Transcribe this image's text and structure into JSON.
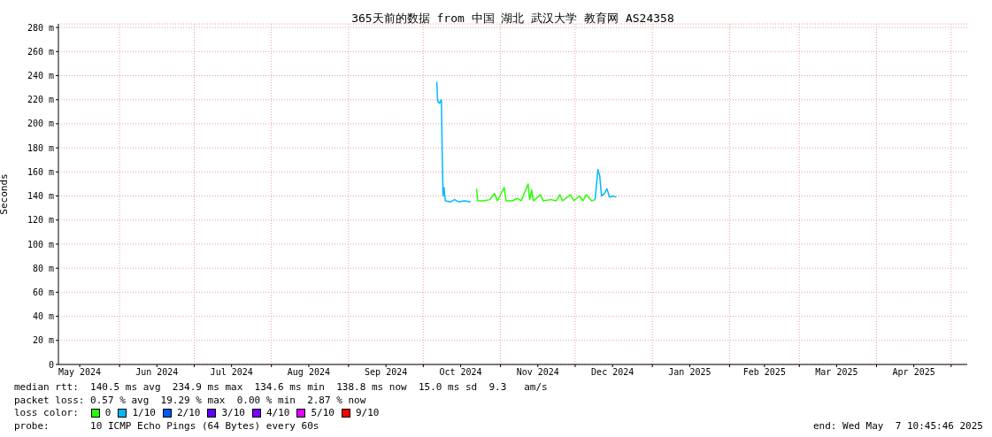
{
  "chart_data": {
    "type": "line",
    "title": "365天前的数据 from 中国 湖北 武汉大学 教育网 AS24358",
    "ylabel": "Seconds",
    "legend_title": "loss color:",
    "legend": "bottom",
    "grid": true,
    "xlim": [
      "2024-05-07T10:45",
      "2025-05-07T10:45"
    ],
    "xticks": [
      {
        "value": "2024-05-16",
        "label": "May 2024"
      },
      {
        "value": "2024-06-01",
        "label": null
      },
      {
        "value": "2024-06-16",
        "label": "Jun 2024"
      },
      {
        "value": "2024-07-01",
        "label": null
      },
      {
        "value": "2024-07-16",
        "label": "Jul 2024"
      },
      {
        "value": "2024-08-01",
        "label": null
      },
      {
        "value": "2024-08-16",
        "label": "Aug 2024"
      },
      {
        "value": "2024-09-01",
        "label": null
      },
      {
        "value": "2024-09-16",
        "label": "Sep 2024"
      },
      {
        "value": "2024-10-01",
        "label": null
      },
      {
        "value": "2024-10-16",
        "label": "Oct 2024"
      },
      {
        "value": "2024-11-01",
        "label": null
      },
      {
        "value": "2024-11-16",
        "label": "Nov 2024"
      },
      {
        "value": "2024-12-01",
        "label": null
      },
      {
        "value": "2024-12-16",
        "label": "Dec 2024"
      },
      {
        "value": "2025-01-01",
        "label": null
      },
      {
        "value": "2025-01-16",
        "label": "Jan 2025"
      },
      {
        "value": "2025-02-01",
        "label": null
      },
      {
        "value": "2025-02-15",
        "label": "Feb 2025"
      },
      {
        "value": "2025-03-01",
        "label": null
      },
      {
        "value": "2025-03-16",
        "label": "Mar 2025"
      },
      {
        "value": "2025-04-01",
        "label": null
      },
      {
        "value": "2025-04-16",
        "label": "Apr 2025"
      },
      {
        "value": "2025-05-01",
        "label": null
      }
    ],
    "ylim": [
      0,
      283
    ],
    "yticks": [
      0,
      {
        "value": 20,
        "label": "20 m"
      },
      {
        "value": 40,
        "label": "40 m"
      },
      {
        "value": 60,
        "label": "60 m"
      },
      {
        "value": 80,
        "label": "80 m"
      },
      {
        "value": 100,
        "label": "100 m"
      },
      {
        "value": 120,
        "label": "120 m"
      },
      {
        "value": 140,
        "label": "140 m"
      },
      {
        "value": 160,
        "label": "160 m"
      },
      {
        "value": 180,
        "label": "180 m"
      },
      {
        "value": 200,
        "label": "200 m"
      },
      {
        "value": 220,
        "label": "220 m"
      },
      {
        "value": 240,
        "label": "240 m"
      },
      {
        "value": 260,
        "label": "260 m"
      },
      {
        "value": 280,
        "label": "280 m"
      }
    ],
    "x": [
      "2024-10-06T10:00",
      "2024-10-06T18:00",
      "2024-10-07T12:00",
      "2024-10-08T06:00",
      "2024-10-08T14:00",
      "2024-10-08T22:00",
      "2024-10-09T08:00",
      "2024-10-09T20:00",
      "2024-10-11T19:00",
      "2024-10-13T14:00",
      "2024-10-15T07:00",
      "2024-10-17T12:00",
      "2024-10-20T00:00",
      "2024-10-21T12:00",
      "2024-10-22T10:00",
      "2024-10-22T20:00",
      "2024-10-25T07:00",
      "2024-10-27T19:00",
      "2024-10-29T14:00",
      "2024-10-30T18:00",
      "2024-11-02T12:00",
      "2024-11-03T06:00",
      "2024-11-05T17:00",
      "2024-11-07T19:00",
      "2024-11-09T07:00",
      "2024-11-12T02:00",
      "2024-11-12T17:00",
      "2024-11-13T12:00",
      "2024-11-14T05:00",
      "2024-11-17T00:00",
      "2024-11-18T02:00",
      "2024-11-21T07:00",
      "2024-11-23T10:00",
      "2024-11-24T20:00",
      "2024-11-25T22:00",
      "2024-11-29T02:00",
      "2024-11-30T12:00",
      "2024-12-02T17:00",
      "2024-12-04T02:00",
      "2024-12-05T12:00",
      "2024-12-07T14:00",
      "2024-12-09T00:00",
      "2024-12-10T03:00",
      "2024-12-10T20:00",
      "2024-12-11T14:00",
      "2024-12-12T17:00",
      "2024-12-13T18:00",
      "2024-12-14T20:00",
      "2024-12-16T06:00",
      "2024-12-17T12:00"
    ],
    "series": [
      {
        "name": "0",
        "color": "#26ff00",
        "values": [
          null,
          null,
          null,
          null,
          null,
          null,
          null,
          null,
          null,
          null,
          null,
          null,
          null,
          null,
          146,
          136,
          136,
          137,
          142,
          136,
          147,
          136,
          136,
          138,
          136,
          150,
          137,
          145,
          136,
          141,
          136,
          137,
          136,
          141,
          136,
          141,
          136,
          140,
          136,
          141,
          136,
          137,
          null,
          null,
          null,
          null,
          null,
          null,
          null,
          null
        ]
      },
      {
        "name": "1/10",
        "color": "#00b8ff",
        "values": [
          234.9,
          219,
          217,
          220,
          178,
          140,
          147,
          136,
          135,
          137,
          135,
          136,
          135,
          null,
          null,
          null,
          null,
          null,
          null,
          null,
          null,
          null,
          null,
          null,
          null,
          null,
          null,
          null,
          null,
          null,
          null,
          null,
          null,
          null,
          null,
          null,
          null,
          null,
          null,
          null,
          null,
          137,
          162,
          157,
          140,
          142,
          146,
          139,
          140,
          139
        ]
      },
      {
        "name": "2/10",
        "color": "#0059ff",
        "values": [
          null,
          null,
          null,
          null,
          null,
          null,
          null,
          null,
          null,
          null,
          null,
          null,
          null,
          null,
          null,
          null,
          null,
          null,
          null,
          null,
          null,
          null,
          null,
          null,
          null,
          null,
          null,
          null,
          null,
          null,
          null,
          null,
          null,
          null,
          null,
          null,
          null,
          null,
          null,
          null,
          null,
          null,
          null,
          null,
          null,
          null,
          null,
          null,
          null,
          null
        ]
      },
      {
        "name": "3/10",
        "color": "#5e00ff",
        "values": [
          null,
          null,
          null,
          null,
          null,
          null,
          null,
          null,
          null,
          null,
          null,
          null,
          null,
          null,
          null,
          null,
          null,
          null,
          null,
          null,
          null,
          null,
          null,
          null,
          null,
          null,
          null,
          null,
          null,
          null,
          null,
          null,
          null,
          null,
          null,
          null,
          null,
          null,
          null,
          null,
          null,
          null,
          null,
          null,
          null,
          null,
          null,
          null,
          null,
          null
        ]
      },
      {
        "name": "4/10",
        "color": "#7e00ff",
        "values": [
          null,
          null,
          null,
          null,
          null,
          null,
          null,
          null,
          null,
          null,
          null,
          null,
          null,
          null,
          null,
          null,
          null,
          null,
          null,
          null,
          null,
          null,
          null,
          null,
          null,
          null,
          null,
          null,
          null,
          null,
          null,
          null,
          null,
          null,
          null,
          null,
          null,
          null,
          null,
          null,
          null,
          null,
          null,
          null,
          null,
          null,
          null,
          null,
          null,
          null
        ]
      },
      {
        "name": "5/10",
        "color": "#dd00ff",
        "values": [
          null,
          null,
          null,
          null,
          null,
          null,
          null,
          null,
          null,
          null,
          null,
          null,
          null,
          null,
          null,
          null,
          null,
          null,
          null,
          null,
          null,
          null,
          null,
          null,
          null,
          null,
          null,
          null,
          null,
          null,
          null,
          null,
          null,
          null,
          null,
          null,
          null,
          null,
          null,
          null,
          null,
          null,
          null,
          null,
          null,
          null,
          null,
          null,
          null,
          null
        ]
      },
      {
        "name": "9/10",
        "color": "#ff0000",
        "values": [
          null,
          null,
          null,
          null,
          null,
          null,
          null,
          null,
          null,
          null,
          null,
          null,
          null,
          null,
          null,
          null,
          null,
          null,
          null,
          null,
          null,
          null,
          null,
          null,
          null,
          null,
          null,
          null,
          null,
          null,
          null,
          null,
          null,
          null,
          null,
          null,
          null,
          null,
          null,
          null,
          null,
          null,
          null,
          null,
          null,
          null,
          null,
          null,
          null,
          null
        ]
      }
    ],
    "annotations": [
      "median rtt:  140.5 ms avg  234.9 ms max  134.6 ms min  138.8 ms now  15.0 ms sd  9.3   am/s",
      "packet loss: 0.57 % avg  19.29 % max  0.00 % min  2.87 % now",
      "probe:       10 ICMP Echo Pings (64 Bytes) every 60s",
      "end: Wed May  7 10:45:46 2025"
    ]
  }
}
